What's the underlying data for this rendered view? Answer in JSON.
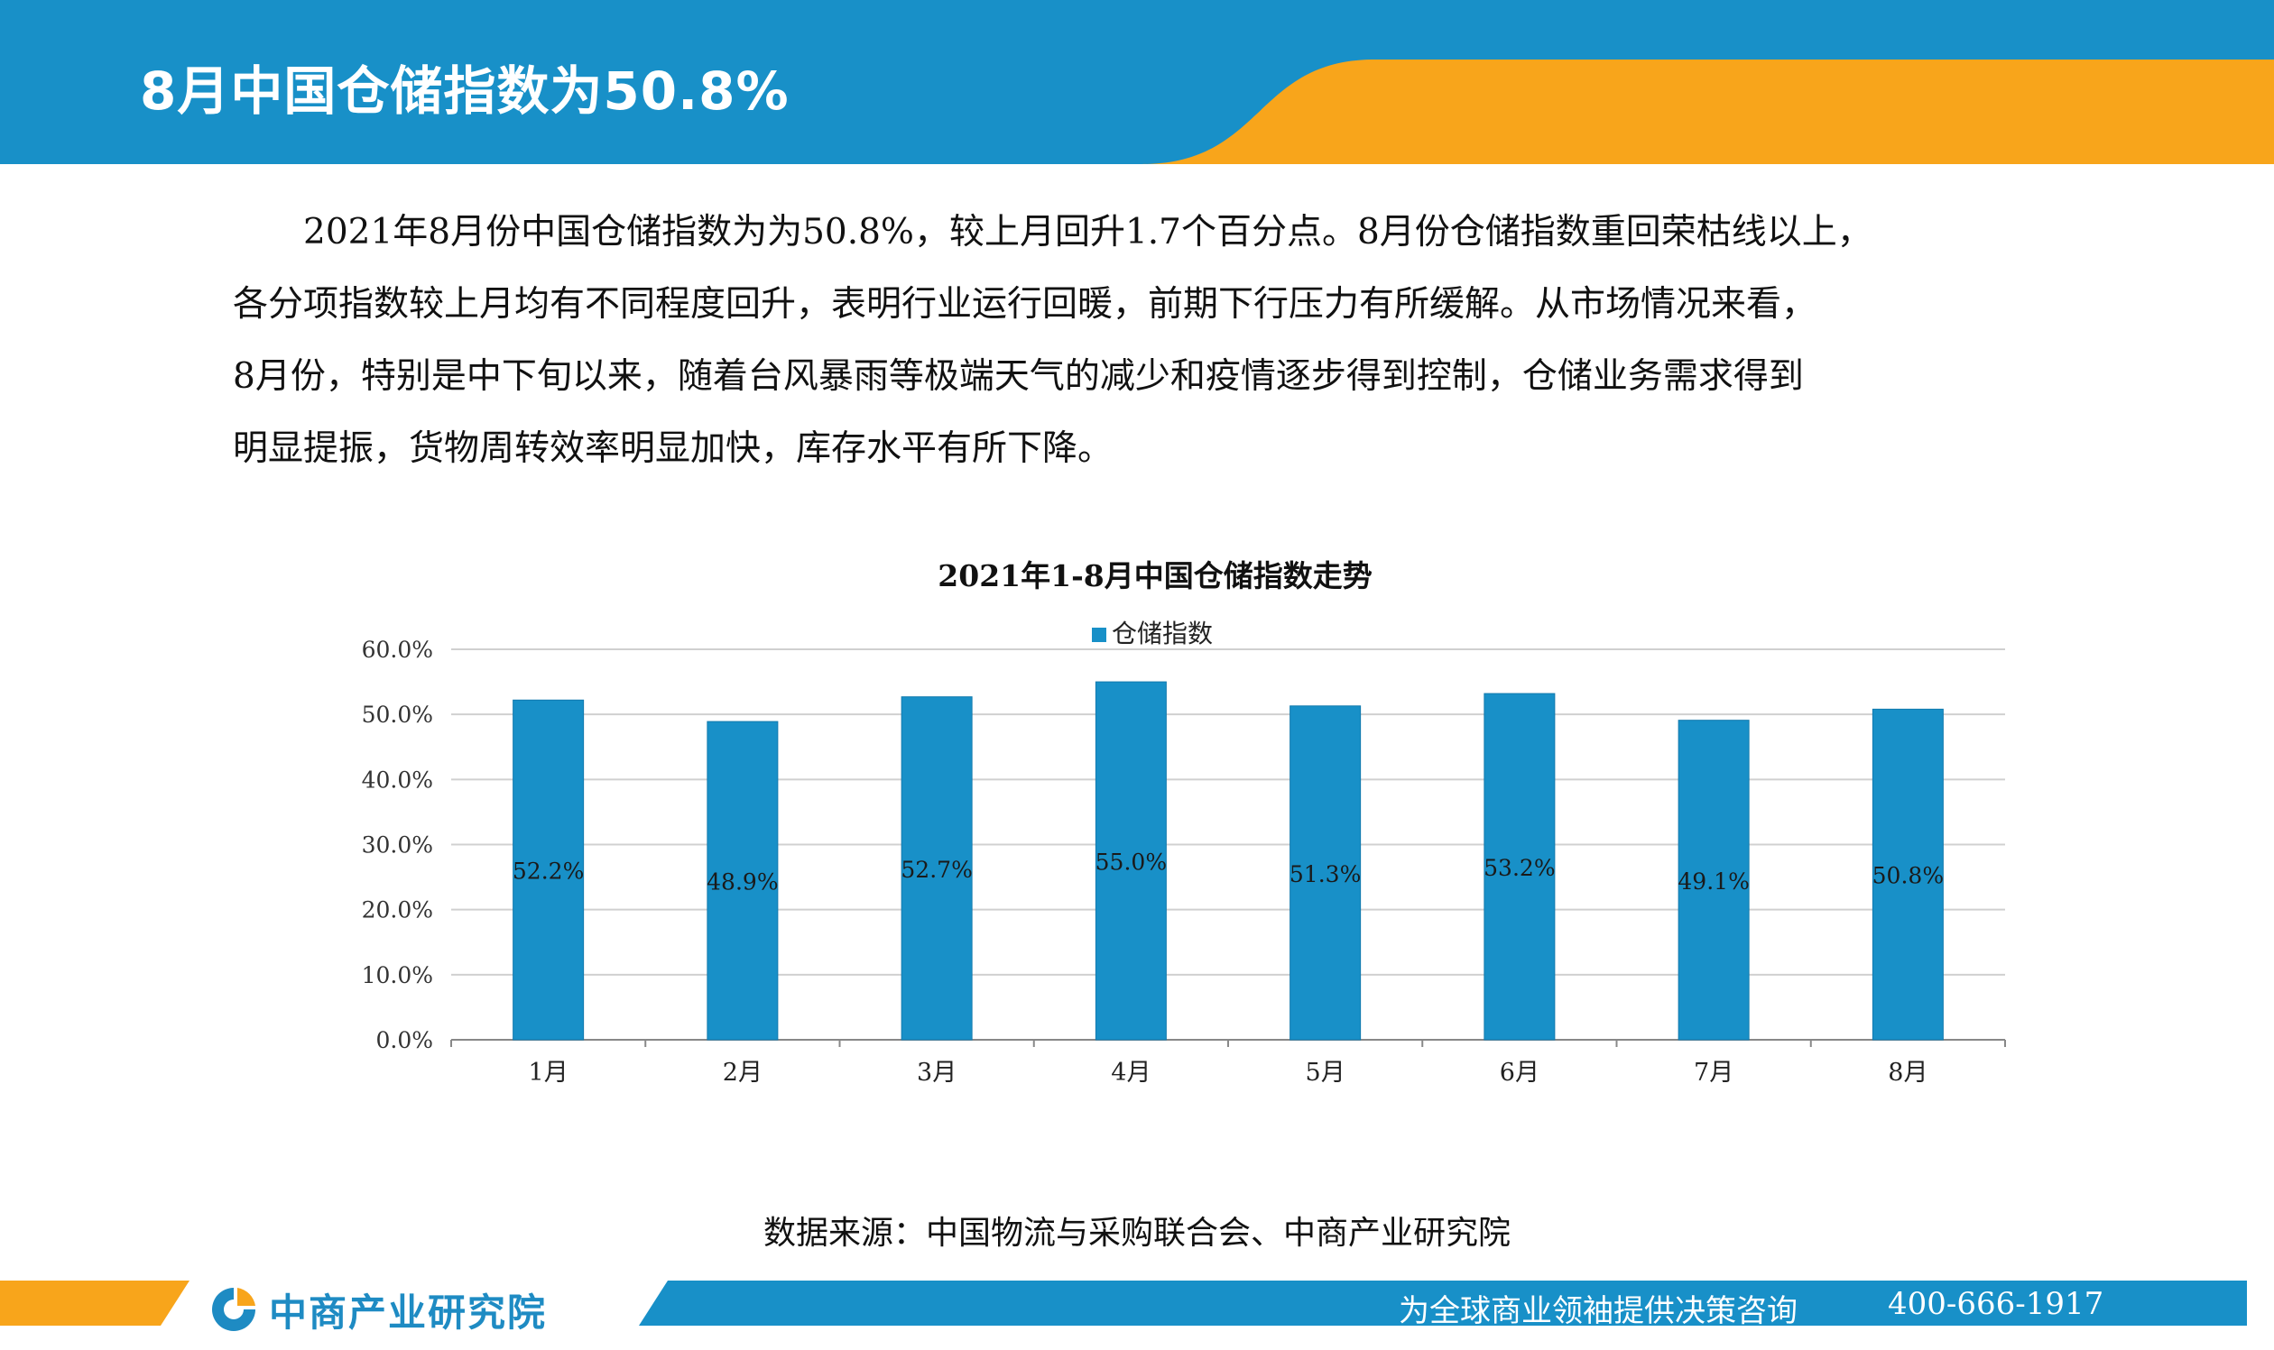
{
  "header": {
    "title": "8月中国仓储指数为50.8%",
    "colors": {
      "blue": "#1890c8",
      "orange": "#f8a51b"
    }
  },
  "body": {
    "paragraph": [
      "　　2021年8月份中国仓储指数为为50.8%，较上月回升1.7个百分点。8月份仓储指数重回荣枯线以上，",
      "各分项指数较上月均有不同程度回升，表明行业运行回暖，前期下行压力有所缓解。从市场情况来看，",
      "8月份，特别是中下旬以来，随着台风暴雨等极端天气的减少和疫情逐步得到控制，仓储业务需求得到",
      "明显提振，货物周转效率明显加快，库存水平有所下降。"
    ]
  },
  "chart_data": {
    "type": "bar",
    "title": "2021年1-8月中国仓储指数走势",
    "categories": [
      "1月",
      "2月",
      "3月",
      "4月",
      "5月",
      "6月",
      "7月",
      "8月"
    ],
    "series": [
      {
        "name": "仓储指数",
        "values": [
          52.2,
          48.9,
          52.7,
          55.0,
          51.3,
          53.2,
          49.1,
          50.8
        ],
        "color": "#1890c8"
      }
    ],
    "data_labels": [
      "52.2%",
      "48.9%",
      "52.7%",
      "55.0%",
      "51.3%",
      "53.2%",
      "49.1%",
      "50.8%"
    ],
    "y_ticks": [
      "0.0%",
      "10.0%",
      "20.0%",
      "30.0%",
      "40.0%",
      "50.0%",
      "60.0%"
    ],
    "ylim": [
      0,
      60
    ],
    "grid": true,
    "legend_position": "top-center",
    "xlabel": "",
    "ylabel": ""
  },
  "source": "数据来源：中国物流与采购联合会、中商产业研究院",
  "footer": {
    "logo_text": "中商产业研究院",
    "logo_icon": "cicc-logo-icon",
    "slogan": "为全球商业领袖提供决策咨询",
    "phone": "400-666-1917",
    "colors": {
      "blue": "#1890c8",
      "orange": "#f8a51b",
      "logo_blue": "#1e8bc3"
    }
  }
}
